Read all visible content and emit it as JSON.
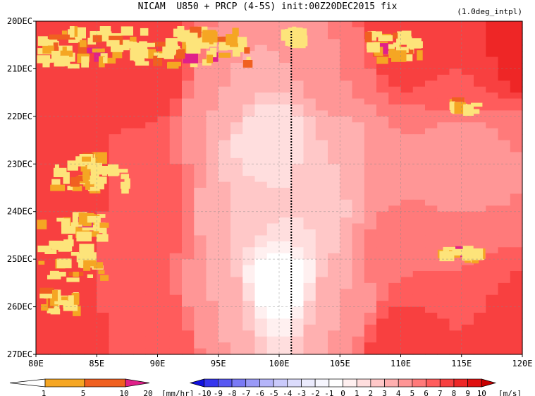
{
  "chart_data": {
    "type": "heatmap",
    "title": "NICAM  U850 + PRCP (4-5S) init:00Z20DEC2015 fix",
    "subtitle": "(1.0deg_intpl)",
    "x_ticks": [
      "80E",
      "85E",
      "90E",
      "95E",
      "100E",
      "105E",
      "110E",
      "115E",
      "120E"
    ],
    "x_tick_values": [
      80,
      85,
      90,
      95,
      100,
      105,
      110,
      115,
      120
    ],
    "xlim": [
      80,
      120
    ],
    "y_ticks": [
      "20DEC",
      "21DEC",
      "22DEC",
      "23DEC",
      "24DEC",
      "25DEC",
      "26DEC",
      "27DEC"
    ],
    "y_tick_values": [
      0,
      1,
      2,
      3,
      4,
      5,
      6,
      7
    ],
    "ylim": [
      0,
      7
    ],
    "y_reversed": true,
    "reference_line_lon": 101,
    "grid": true,
    "u850_colorbar": {
      "labels": [
        "-10",
        "-9",
        "-8",
        "-7",
        "-6",
        "-5",
        "-4",
        "-3",
        "-2",
        "-1",
        "0",
        "1",
        "2",
        "3",
        "4",
        "5",
        "6",
        "7",
        "8",
        "9",
        "10"
      ],
      "colors": [
        "#1010e0",
        "#3535ee",
        "#5858f2",
        "#7a7af5",
        "#9a9af7",
        "#b5b5f9",
        "#cacafb",
        "#dcdcfc",
        "#ebebfd",
        "#f6f6fe",
        "#ffffff",
        "#fff0f0",
        "#ffdede",
        "#ffc8c8",
        "#ffb0b0",
        "#ff9696",
        "#ff7a7a",
        "#ff5c5c",
        "#f84040",
        "#ee2626",
        "#e01010",
        "#c80000"
      ],
      "unit": "[m/s]"
    },
    "prcp_colorbar": {
      "labels": [
        "1",
        "5",
        "10",
        "20"
      ],
      "colors": [
        "#ffffff",
        "#fde47a",
        "#f5a623",
        "#f06020",
        "#e0208a"
      ],
      "unit": "[mm/hr]"
    },
    "u850_anchor_values": [
      {
        "lon": 80,
        "t": 0.2,
        "u": 8
      },
      {
        "lon": 80,
        "t": 3.5,
        "u": 8
      },
      {
        "lon": 80,
        "t": 6.8,
        "u": 8
      },
      {
        "lon": 90,
        "t": 1,
        "u": 8
      },
      {
        "lon": 90,
        "t": 4,
        "u": 7
      },
      {
        "lon": 90,
        "t": 6.5,
        "u": 7
      },
      {
        "lon": 95,
        "t": 1.5,
        "u": 4
      },
      {
        "lon": 96,
        "t": 4,
        "u": 3
      },
      {
        "lon": 95,
        "t": 6,
        "u": 4
      },
      {
        "lon": 100,
        "t": 0.5,
        "u": 4
      },
      {
        "lon": 99,
        "t": 2.5,
        "u": 1
      },
      {
        "lon": 100,
        "t": 5.5,
        "u": -1
      },
      {
        "lon": 102,
        "t": 4,
        "u": 2
      },
      {
        "lon": 105,
        "t": 1,
        "u": 5
      },
      {
        "lon": 105,
        "t": 3,
        "u": 3
      },
      {
        "lon": 105,
        "t": 6,
        "u": 4
      },
      {
        "lon": 110,
        "t": 0.5,
        "u": 8
      },
      {
        "lon": 110,
        "t": 3,
        "u": 5
      },
      {
        "lon": 110,
        "t": 5,
        "u": 6
      },
      {
        "lon": 110,
        "t": 6.8,
        "u": 8
      },
      {
        "lon": 115,
        "t": 1,
        "u": 7
      },
      {
        "lon": 115,
        "t": 3,
        "u": 4
      },
      {
        "lon": 115,
        "t": 5,
        "u": 6
      },
      {
        "lon": 120,
        "t": 0.5,
        "u": 9
      },
      {
        "lon": 120,
        "t": 3,
        "u": 5
      },
      {
        "lon": 120,
        "t": 6.5,
        "u": 8
      }
    ],
    "prcp_regions": [
      {
        "lon0": 80,
        "lon1": 98,
        "t0": 0.1,
        "t1": 1.0,
        "p": 6
      },
      {
        "lon0": 100,
        "lon1": 102.5,
        "t0": 0.1,
        "t1": 0.6,
        "p": 7
      },
      {
        "lon0": 107,
        "lon1": 112,
        "t0": 0.2,
        "t1": 0.9,
        "p": 6
      },
      {
        "lon0": 81,
        "lon1": 88,
        "t0": 2.7,
        "t1": 3.7,
        "p": 4
      },
      {
        "lon0": 80,
        "lon1": 86,
        "t0": 4.0,
        "t1": 5.5,
        "p": 5
      },
      {
        "lon0": 80,
        "lon1": 84,
        "t0": 5.6,
        "t1": 6.2,
        "p": 5
      },
      {
        "lon0": 113,
        "lon1": 117,
        "t0": 4.7,
        "t1": 5.1,
        "p": 5
      },
      {
        "lon0": 114,
        "lon1": 117,
        "t0": 1.6,
        "t1": 2.0,
        "p": 4
      }
    ]
  }
}
